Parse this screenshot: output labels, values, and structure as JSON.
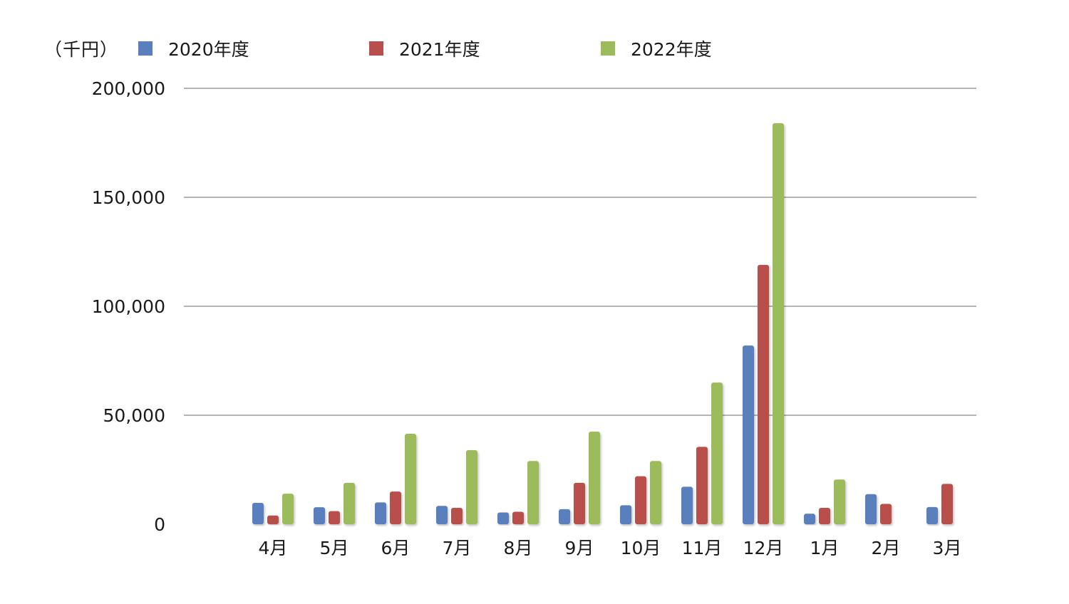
{
  "chart_data": {
    "type": "bar",
    "unit_label": "（千円）",
    "categories": [
      "4月",
      "5月",
      "6月",
      "7月",
      "8月",
      "9月",
      "10月",
      "11月",
      "12月",
      "1月",
      "2月",
      "3月"
    ],
    "series": [
      {
        "name": "2020年度",
        "color": "#5a7fbd",
        "values": [
          9800,
          7800,
          10000,
          8400,
          5400,
          6900,
          8700,
          17200,
          82000,
          4800,
          13800,
          7900
        ]
      },
      {
        "name": "2021年度",
        "color": "#b84f4c",
        "values": [
          4000,
          6000,
          15000,
          7500,
          5700,
          19000,
          22000,
          35500,
          119000,
          7500,
          9300,
          18500
        ]
      },
      {
        "name": "2022年度",
        "color": "#9cbb5a",
        "values": [
          14000,
          19000,
          41500,
          34000,
          29000,
          42500,
          29000,
          65000,
          184000,
          20500,
          null,
          null
        ]
      }
    ],
    "ylim": [
      0,
      200000
    ],
    "yticks": [
      "0",
      "50,000",
      "100,000",
      "150,000",
      "200,000"
    ],
    "ytick_values": [
      0,
      50000,
      100000,
      150000,
      200000
    ],
    "grid": true,
    "legend_position": "top"
  }
}
